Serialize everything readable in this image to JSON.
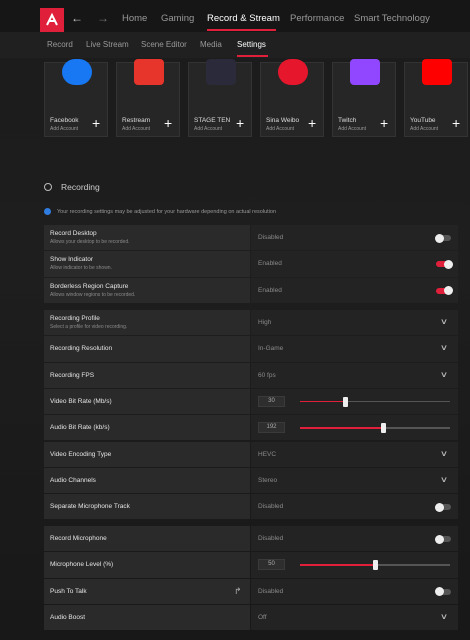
{
  "top_nav": {
    "items": [
      "Home",
      "Gaming",
      "Record & Stream",
      "Performance",
      "Smart Technology"
    ]
  },
  "sub_nav": {
    "items": [
      "Record",
      "Live Stream",
      "Scene Editor",
      "Media",
      "Settings"
    ]
  },
  "accounts": [
    {
      "name": "Facebook",
      "action": "Add Account"
    },
    {
      "name": "Restream",
      "action": "Add Account"
    },
    {
      "name": "STAGE TEN",
      "action": "Add Account"
    },
    {
      "name": "Sina Weibo",
      "action": "Add Account"
    },
    {
      "name": "Twitch",
      "action": "Add Account"
    },
    {
      "name": "YouTube",
      "action": "Add Account"
    }
  ],
  "section": {
    "title": "Recording",
    "notice": "Your recording settings may be adjusted for your hardware depending on actual resolution"
  },
  "groups": [
    {
      "rows": [
        {
          "label": "Record Desktop",
          "description": "Allows your desktop to be recorded.",
          "value": "Disabled"
        },
        {
          "label": "Show Indicator",
          "description": "Allow indicator to be shown.",
          "value": "Enabled"
        },
        {
          "label": "Borderless Region Capture",
          "description": "Allows window regions to be recorded.",
          "value": "Enabled"
        }
      ]
    },
    {
      "rows": [
        {
          "label": "Recording Profile",
          "description": "Select a profile for video recording.",
          "value": "High"
        },
        {
          "label": "Recording Resolution",
          "value": "In-Game"
        },
        {
          "label": "Recording FPS",
          "value": "60 fps"
        },
        {
          "label": "Video Bit Rate (Mb/s)",
          "value": "30"
        },
        {
          "label": "Audio Bit Rate (kb/s)",
          "value": "192"
        },
        {
          "label": "Video Encoding Type",
          "value": "HEVC"
        },
        {
          "label": "Audio Channels",
          "value": "Stereo"
        },
        {
          "label": "Separate Microphone Track",
          "value": "Disabled"
        }
      ]
    },
    {
      "rows": [
        {
          "label": "Record Microphone",
          "value": "Disabled"
        },
        {
          "label": "Microphone Level (%)",
          "value": "50"
        },
        {
          "label": "Push To Talk",
          "value": "Disabled"
        },
        {
          "label": "Audio Boost",
          "value": "Off"
        }
      ]
    }
  ]
}
